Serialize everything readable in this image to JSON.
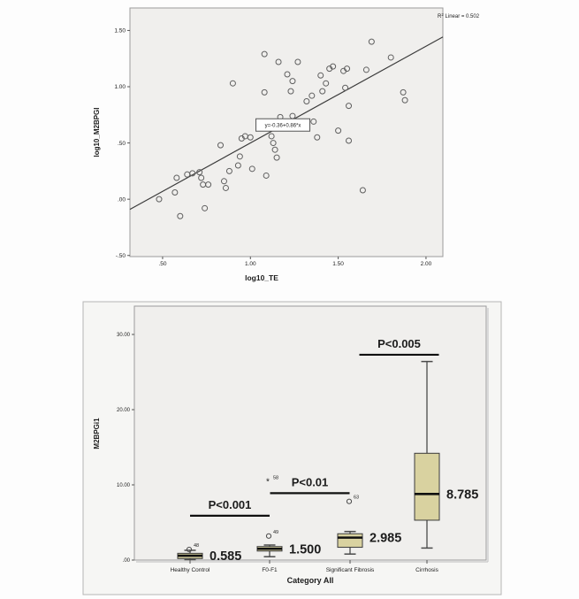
{
  "colors": {
    "page_bg": "#fdfdfd",
    "plot_bg": "#f0efed",
    "panel_bg": "#f6f6f4",
    "box_fill": "#d9d2a0",
    "box_stroke": "#3a3a3a",
    "whisker_stroke": "#4a4a4a",
    "point_stroke": "#5f5f5f",
    "line_stroke": "#3c3c3c",
    "frame_stroke": "#9b9b9b",
    "annotation_text": "#111111"
  },
  "chart_data": [
    {
      "type": "scatter",
      "title": "",
      "xlabel": "log10_TE",
      "ylabel": "log10_M2BPGI",
      "xlim": [
        0.314,
        2.096
      ],
      "ylim": [
        -0.51,
        1.7
      ],
      "xticks": [
        0.5,
        1.0,
        1.5,
        2.0
      ],
      "xtick_labels": [
        ".50",
        "1.00",
        "1.50",
        "2.00"
      ],
      "yticks": [
        1.5,
        1.0,
        0.5,
        0.0,
        -0.5
      ],
      "ytick_labels": [
        "1.50",
        "1.00",
        ".50",
        ".00",
        "-.50"
      ],
      "grid": false,
      "r2_annotation": {
        "base": "R",
        "sup": "2",
        "rest": " Linear = 0.502"
      },
      "equation_label": "y=-0.36+0.86*x",
      "equation_pos": [
        1.185,
        0.66
      ],
      "regression": {
        "intercept": -0.36,
        "slope": 0.86
      },
      "points": [
        [
          0.48,
          0.0
        ],
        [
          0.57,
          0.06
        ],
        [
          0.6,
          -0.15
        ],
        [
          0.58,
          0.19
        ],
        [
          0.64,
          0.22
        ],
        [
          0.67,
          0.23
        ],
        [
          0.71,
          0.24
        ],
        [
          0.72,
          0.19
        ],
        [
          0.73,
          0.13
        ],
        [
          0.76,
          0.13
        ],
        [
          0.74,
          -0.08
        ],
        [
          0.83,
          0.48
        ],
        [
          0.85,
          0.16
        ],
        [
          0.86,
          0.1
        ],
        [
          0.88,
          0.25
        ],
        [
          0.9,
          1.03
        ],
        [
          0.93,
          0.3
        ],
        [
          0.94,
          0.38
        ],
        [
          0.95,
          0.54
        ],
        [
          0.97,
          0.56
        ],
        [
          1.0,
          0.55
        ],
        [
          1.01,
          0.27
        ],
        [
          1.08,
          1.29
        ],
        [
          1.08,
          0.95
        ],
        [
          1.09,
          0.21
        ],
        [
          1.12,
          0.56
        ],
        [
          1.13,
          0.5
        ],
        [
          1.14,
          0.44
        ],
        [
          1.15,
          0.37
        ],
        [
          1.16,
          1.22
        ],
        [
          1.17,
          0.73
        ],
        [
          1.21,
          1.11
        ],
        [
          1.23,
          0.96
        ],
        [
          1.24,
          1.05
        ],
        [
          1.24,
          0.74
        ],
        [
          1.27,
          1.22
        ],
        [
          1.32,
          0.87
        ],
        [
          1.35,
          0.92
        ],
        [
          1.36,
          0.69
        ],
        [
          1.38,
          0.55
        ],
        [
          1.4,
          1.1
        ],
        [
          1.41,
          0.96
        ],
        [
          1.43,
          1.03
        ],
        [
          1.45,
          1.16
        ],
        [
          1.47,
          1.18
        ],
        [
          1.5,
          0.61
        ],
        [
          1.53,
          1.14
        ],
        [
          1.54,
          0.99
        ],
        [
          1.55,
          1.16
        ],
        [
          1.56,
          0.83
        ],
        [
          1.56,
          0.52
        ],
        [
          1.64,
          0.08
        ],
        [
          1.66,
          1.15
        ],
        [
          1.69,
          1.4
        ],
        [
          1.8,
          1.26
        ],
        [
          1.87,
          0.95
        ],
        [
          1.88,
          0.88
        ]
      ]
    },
    {
      "type": "boxplot",
      "title": "",
      "xlabel": "Category All",
      "ylabel": "M2BPGi1",
      "ylim": [
        0,
        33.8
      ],
      "yticks": [
        0,
        10,
        20,
        30
      ],
      "ytick_labels": [
        ".00",
        "10.00",
        "20.00",
        "30.00"
      ],
      "categories": [
        "Healthy Control",
        "F0-F1",
        "Significant Fibrosis",
        "Cirrhosis"
      ],
      "boxes": [
        {
          "category": "Healthy Control",
          "median": 0.585,
          "median_label": "0.585",
          "q1": 0.2,
          "q3": 0.9,
          "whisker_low": 0.05,
          "whisker_high": 1.3,
          "outliers": [
            {
              "value": 1.4,
              "label": "48",
              "marker": "circle"
            }
          ]
        },
        {
          "category": "F0-F1",
          "median": 1.5,
          "median_label": "1.500",
          "q1": 1.2,
          "q3": 1.8,
          "whisker_low": 0.45,
          "whisker_high": 2.0,
          "outliers": [
            {
              "value": 3.2,
              "label": "49",
              "marker": "circle"
            },
            {
              "value": 10.4,
              "label": "58",
              "marker": "asterisk"
            }
          ]
        },
        {
          "category": "Significant Fibrosis",
          "median": 2.985,
          "median_label": "2.985",
          "q1": 1.7,
          "q3": 3.5,
          "whisker_low": 0.8,
          "whisker_high": 3.8,
          "outliers": [
            {
              "value": 7.8,
              "label": "63",
              "marker": "circle"
            }
          ]
        },
        {
          "category": "Cirrhosis",
          "median": 8.785,
          "median_label": "8.785",
          "q1": 5.3,
          "q3": 14.2,
          "whisker_low": 1.6,
          "whisker_high": 26.4,
          "outliers": []
        }
      ],
      "pvalue_annotations": [
        {
          "label": "P<0.001",
          "between": [
            0,
            1
          ],
          "line_y": 5.9
        },
        {
          "label": "P<0.01",
          "between": [
            1,
            2
          ],
          "line_y": 8.9
        },
        {
          "label": "P<0.005",
          "between": [
            2,
            3
          ],
          "line_y": 27.3
        }
      ]
    }
  ]
}
